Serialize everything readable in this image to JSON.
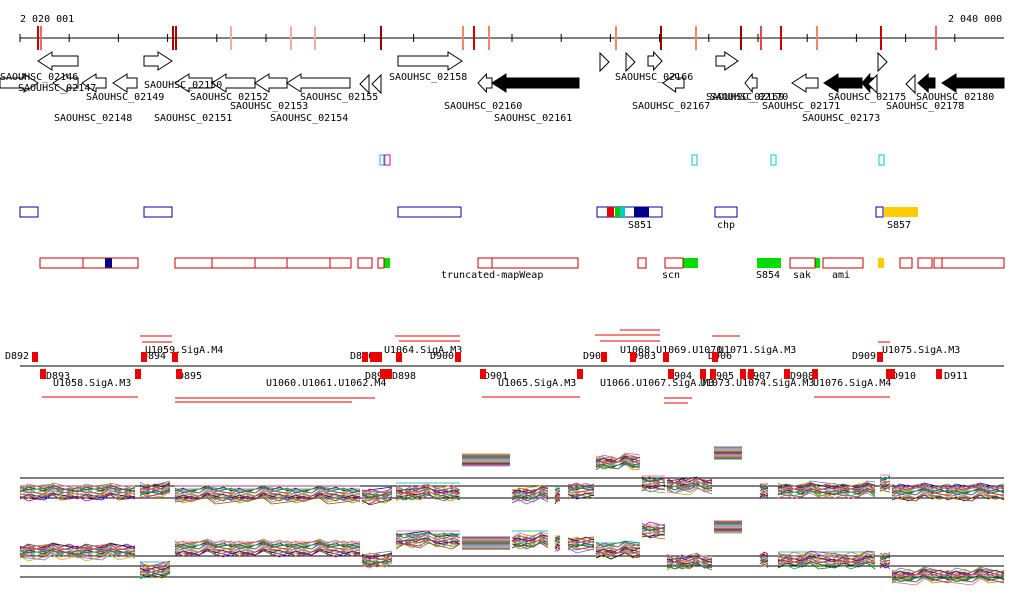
{
  "axis": {
    "start_label": "2 020 001",
    "end_label": "2 040 000"
  },
  "genes": [
    {
      "name": "SAOUHSC_02146",
      "s": 0,
      "e": 38,
      "dir": "r",
      "row": 0,
      "fill": "white"
    },
    {
      "name": "SAOUHSC_02147",
      "s": 53,
      "e": 78,
      "dir": "l",
      "row": 0,
      "fill": "white"
    },
    {
      "name": "SAOUHSC_02148",
      "s": 38,
      "e": 78,
      "dir": "l",
      "row": 1,
      "fill": "white"
    },
    {
      "name": "SAOUHSC_02149",
      "s": 82,
      "e": 106,
      "dir": "l",
      "row": 0,
      "fill": "white"
    },
    {
      "name": "SAOUHSC_02150",
      "s": 144,
      "e": 172,
      "dir": "r",
      "row": 1,
      "fill": "white"
    },
    {
      "name": "SAOUHSC_02151",
      "s": 113,
      "e": 137,
      "dir": "l",
      "row": 0,
      "fill": "white"
    },
    {
      "name": "SAOUHSC_02152",
      "s": 175,
      "e": 212,
      "dir": "l",
      "row": 0,
      "fill": "white"
    },
    {
      "name": "SAOUHSC_02153",
      "s": 212,
      "e": 255,
      "dir": "l",
      "row": 0,
      "fill": "white"
    },
    {
      "name": "SAOUHSC_02154",
      "s": 255,
      "e": 287,
      "dir": "l",
      "row": 0,
      "fill": "white"
    },
    {
      "name": "SAOUHSC_02155",
      "s": 287,
      "e": 350,
      "dir": "l",
      "row": 0,
      "fill": "white"
    },
    {
      "name": "SAOUHSC_02158",
      "s": 398,
      "e": 462,
      "dir": "r",
      "row": 1,
      "fill": "white"
    },
    {
      "name": "SAOUHSC_02160",
      "s": 478,
      "e": 492,
      "dir": "l",
      "row": 0,
      "fill": "white"
    },
    {
      "name": "SAOUHSC_02161",
      "s": 492,
      "e": 579,
      "dir": "l",
      "row": 0,
      "fill": "black"
    },
    {
      "name": "SAOUHSC_02166",
      "s": 648,
      "e": 662,
      "dir": "r",
      "row": 1,
      "fill": "white"
    },
    {
      "name": "SAOUHSC_02167",
      "s": 663,
      "e": 684,
      "dir": "l",
      "row": 0,
      "fill": "white"
    },
    {
      "name": "SAOUHSC_02169",
      "s": 716,
      "e": 738,
      "dir": "r",
      "row": 1,
      "fill": "white"
    },
    {
      "name": "SAOUHSC_02170",
      "s": 745,
      "e": 757,
      "dir": "l",
      "row": 0,
      "fill": "white"
    },
    {
      "name": "SAOUHSC_02171",
      "s": 792,
      "e": 818,
      "dir": "l",
      "row": 0,
      "fill": "white"
    },
    {
      "name": "SAOUHSC_02173",
      "s": 824,
      "e": 862,
      "dir": "l",
      "row": 0,
      "fill": "black"
    },
    {
      "name": "SAOUHSC_02175",
      "s": 862,
      "e": 875,
      "dir": "l",
      "row": 0,
      "fill": "black"
    },
    {
      "name": "SAOUHSC_02178",
      "s": 918,
      "e": 935,
      "dir": "l",
      "row": 0,
      "fill": "black"
    },
    {
      "name": "SAOUHSC_02180",
      "s": 942,
      "e": 1004,
      "dir": "l",
      "row": 0,
      "fill": "black"
    }
  ],
  "labels_row1": [
    {
      "t": "SAOUHSC_02146"
    },
    {
      "t": "SAOUHSC_02150"
    },
    {
      "t": "SAOUHSC_02158"
    },
    {
      "t": "SAOUHSC_02166"
    }
  ],
  "labels_row2": [
    {
      "t": "SAOUHSC_02147"
    },
    {
      "t": "SAOUHSC_02149"
    },
    {
      "t": "SAOUHSC_02152"
    },
    {
      "t": "SAOUHSC_02155"
    },
    {
      "t": "SAOUHSC_02169"
    },
    {
      "t": "SAOUHSC_02170"
    },
    {
      "t": "SAOUHSC_02175"
    },
    {
      "t": "SAOUHSC_02180"
    }
  ],
  "labels_row3": [
    {
      "t": "SAOUHSC_02153"
    },
    {
      "t": "SAOUHSC_02160"
    },
    {
      "t": "SAOUHSC_02167"
    },
    {
      "t": "SAOUHSC_02171"
    },
    {
      "t": "SAOUHSC_02178"
    }
  ],
  "labels_row4": [
    {
      "t": "SAOUHSC_02148"
    },
    {
      "t": "SAOUHSC_02151"
    },
    {
      "t": "SAOUHSC_02154"
    },
    {
      "t": "SAOUHSC_02161"
    },
    {
      "t": "SAOUHSC_02173"
    }
  ],
  "feature_labels": [
    {
      "t": "S851"
    },
    {
      "t": "chp"
    },
    {
      "t": "S857"
    },
    {
      "t": "truncated-mapWeap"
    },
    {
      "t": "scn"
    },
    {
      "t": "S854"
    },
    {
      "t": "sak"
    },
    {
      "t": "ami"
    }
  ],
  "reg_labels": [
    {
      "t": "D892"
    },
    {
      "t": "D893"
    },
    {
      "t": "U1058.SigA.M3"
    },
    {
      "t": "U1059.SigA.M4"
    },
    {
      "t": "D894"
    },
    {
      "t": "D895"
    },
    {
      "t": "U1060.U1061.U1062.M4"
    },
    {
      "t": "D896"
    },
    {
      "t": "D897"
    },
    {
      "t": "D898"
    },
    {
      "t": "U1064.SigA.M3"
    },
    {
      "t": "D900"
    },
    {
      "t": "D901"
    },
    {
      "t": "U1065.SigA.M3"
    },
    {
      "t": "D902"
    },
    {
      "t": "U1066.U1067.SigA.M3"
    },
    {
      "t": "D903"
    },
    {
      "t": "U1068.U1069.U1070"
    },
    {
      "t": "D904"
    },
    {
      "t": "D905"
    },
    {
      "t": "D906"
    },
    {
      "t": "U1071.SigA.M3"
    },
    {
      "t": "U1073.U1074.SigA.M3"
    },
    {
      "t": "D907"
    },
    {
      "t": "D908"
    },
    {
      "t": "D909"
    },
    {
      "t": "U1075.SigA.M3"
    },
    {
      "t": "U1076.SigA.M4"
    },
    {
      "t": "D910"
    },
    {
      "t": "D911"
    }
  ],
  "colors": {
    "gene_outline": "#000000",
    "feature_blue": "#0000aa",
    "feature_red": "#cc0000",
    "feature_green": "#00dd00",
    "feature_yellow": "#ffcc00",
    "cyan": "#00cccc",
    "magenta": "#cc00cc"
  }
}
